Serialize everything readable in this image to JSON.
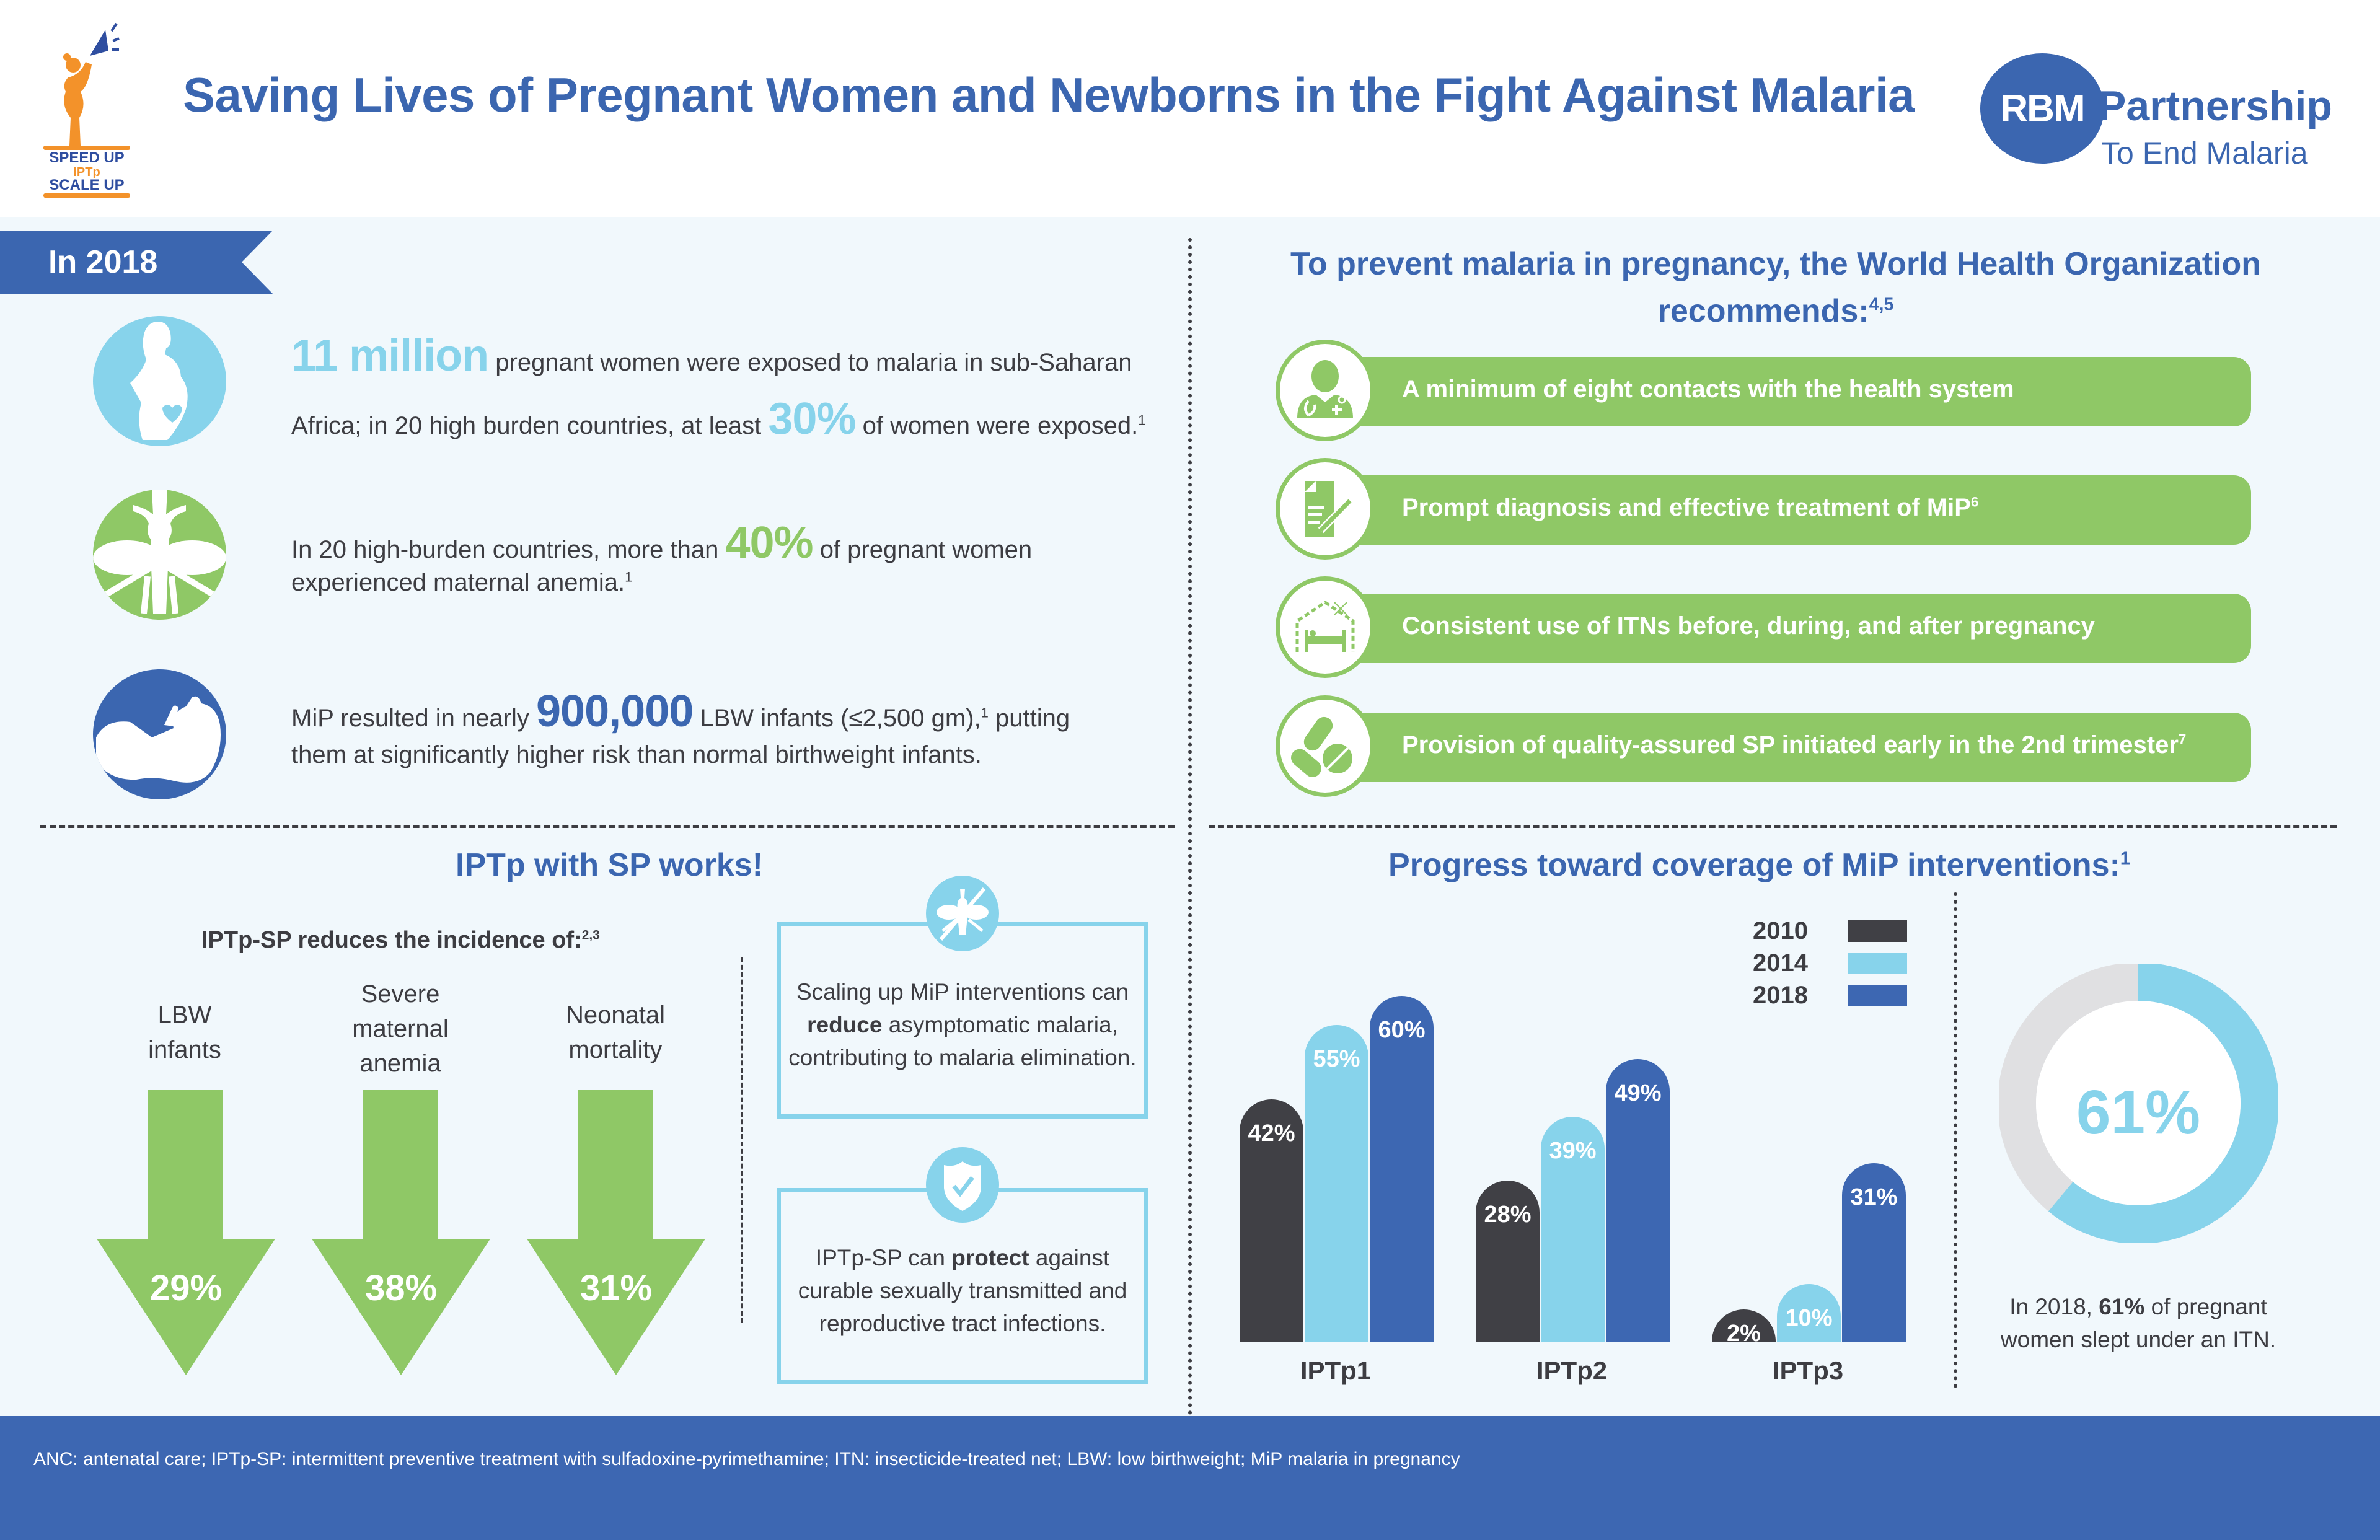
{
  "header": {
    "title": "Saving Lives of Pregnant Women and Newborns in the Fight Against Malaria",
    "campaign_logo": {
      "line1": "SPEED UP",
      "line2": "IPTp",
      "line3": "SCALE UP",
      "icon": "megaphone-woman-icon"
    },
    "partner_logo": {
      "mark": "RBM",
      "name": "Partnership",
      "tagline": "To End Malaria"
    }
  },
  "in2018": {
    "banner": "In 2018",
    "stats": [
      {
        "icon": "pregnant-woman-icon",
        "highlight1": "11 million",
        "text1": "pregnant women were exposed to malaria in sub-Saharan",
        "text2": "Africa; in 20 high burden countries, at least",
        "highlight2": "30%",
        "text3": "of women were exposed.",
        "sup": "1"
      },
      {
        "icon": "mosquito-icon",
        "text1": "In 20 high-burden countries, more than",
        "highlight": "40%",
        "text2": "of pregnant women",
        "text3": "experienced maternal anemia.",
        "sup": "1"
      },
      {
        "icon": "infant-icon",
        "text1": "MiP resulted in nearly",
        "highlight": "900,000",
        "text2": "LBW infants (≤2,500 gm),",
        "sup": "1",
        "text3": "putting",
        "text4": "them at significantly higher risk than normal birthweight infants."
      }
    ]
  },
  "who": {
    "title_line1": "To prevent malaria in pregnancy, the World Health Organization",
    "title_line2": "recommends:",
    "title_sup": "4,5",
    "recommendations": [
      {
        "icon": "doctor-icon",
        "text": "A minimum of eight contacts with the health system",
        "sup": ""
      },
      {
        "icon": "prescription-icon",
        "text": "Prompt diagnosis and effective treatment of MiP",
        "sup": "6"
      },
      {
        "icon": "bed-net-icon",
        "text": "Consistent use of ITNs before, during, and after pregnancy",
        "sup": ""
      },
      {
        "icon": "pills-icon",
        "text": "Provision of quality-assured SP initiated early in the 2nd trimester",
        "sup": "7"
      }
    ]
  },
  "iptp": {
    "title": "IPTp with SP works!",
    "subtitle": "IPTp-SP reduces the incidence of:",
    "subtitle_sup": "2,3",
    "reductions": [
      {
        "label_lines": [
          "LBW",
          "infants"
        ],
        "value": "29%"
      },
      {
        "label_lines": [
          "Severe",
          "maternal",
          "anemia"
        ],
        "value": "38%"
      },
      {
        "label_lines": [
          "Neonatal",
          "mortality"
        ],
        "value": "31%"
      }
    ],
    "boxes": [
      {
        "icon": "no-mosquito-icon",
        "pre": "Scaling up MiP interventions can ",
        "bold": "reduce",
        "post": " asymptomatic malaria, contributing to malaria elimination."
      },
      {
        "icon": "shield-check-icon",
        "pre": "IPTp-SP can ",
        "bold": "protect",
        "post": " against curable sexually transmitted and reproductive tract infections."
      }
    ]
  },
  "chart_data": [
    {
      "type": "bar",
      "title": "Progress toward coverage of MiP interventions:",
      "title_sup": "1",
      "categories": [
        "IPTp1",
        "IPTp2",
        "IPTp3"
      ],
      "series": [
        {
          "name": "2010",
          "color": "#404045",
          "values": [
            42,
            28,
            2
          ],
          "labels": [
            "42%",
            "28%",
            "2%"
          ]
        },
        {
          "name": "2014",
          "color": "#87d3eb",
          "values": [
            55,
            39,
            10
          ],
          "labels": [
            "55%",
            "39%",
            "10%"
          ]
        },
        {
          "name": "2018",
          "color": "#3d67b2",
          "values": [
            60,
            49,
            31
          ],
          "labels": [
            "60%",
            "49%",
            "31%"
          ]
        }
      ],
      "ylim": [
        0,
        65
      ],
      "legend": "top-right",
      "grid": false,
      "xlabel": "",
      "ylabel": ""
    },
    {
      "type": "pie",
      "subtype": "donut",
      "value": 61,
      "label": "61%",
      "colors": {
        "filled": "#87d3eb",
        "remaining": "#e0e0e2"
      },
      "caption_pre": "In 2018, ",
      "caption_bold": "61%",
      "caption_post": " of pregnant women slept under an ITN."
    }
  ],
  "footer": {
    "text": "ANC: antenatal care; IPTp-SP: intermittent preventive treatment with sulfadoxine-pyrimethamine; ITN: insecticide-treated net; LBW: low birthweight; MiP malaria in pregnancy"
  },
  "colors": {
    "brand_blue": "#3b66b0",
    "light_blue": "#87d3eb",
    "green": "#8fc866",
    "dark": "#3d3d42",
    "orange": "#f3922a"
  }
}
